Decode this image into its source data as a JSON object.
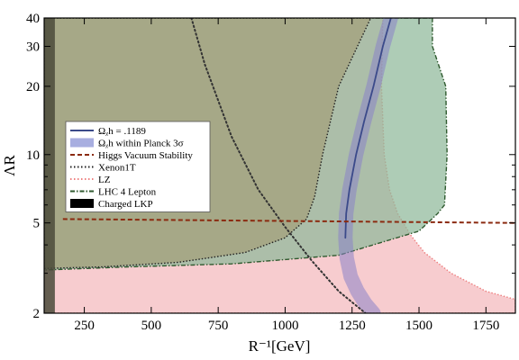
{
  "chart_data": {
    "type": "area",
    "xlabel": "R⁻¹[GeV]",
    "ylabel": "ΛR",
    "xlim": [
      100,
      1860
    ],
    "ylim": [
      2,
      40
    ],
    "yscale": "log",
    "x_ticks": [
      250,
      500,
      750,
      1000,
      1250,
      1500,
      1750
    ],
    "y_ticks": [
      2,
      5,
      10,
      20,
      30,
      40
    ],
    "legend_position": "center-left",
    "legend": [
      {
        "label": "Ωᵪh = .1189",
        "style": "solid-line",
        "color": "#3b4a8a"
      },
      {
        "label": "Ωᵪh within Planck 3σ",
        "style": "band",
        "color": "#a8aee0"
      },
      {
        "label": "Higgs Vacuum Stability",
        "style": "dashed-line",
        "color": "#8b2a10"
      },
      {
        "label": "Xenon1T",
        "style": "dotted-line",
        "color": "#222222"
      },
      {
        "label": "LZ",
        "style": "dotted-line",
        "color": "#ee8080"
      },
      {
        "label": "LHC 4 Lepton",
        "style": "dash-dot-line",
        "color": "#2f5a2f"
      },
      {
        "label": "Charged LKP",
        "style": "filled",
        "color": "#000000"
      }
    ],
    "series": [
      {
        "name": "LZ",
        "kind": "excluded-region",
        "fill": "#f4b8bc",
        "edge": "#ee8080",
        "boundary": [
          [
            100,
            40
          ],
          [
            100,
            2
          ],
          [
            1860,
            2
          ],
          [
            1860,
            2.3
          ],
          [
            1750,
            2.5
          ],
          [
            1620,
            3.0
          ],
          [
            1520,
            3.7
          ],
          [
            1470,
            4.4
          ],
          [
            1420,
            5.5
          ],
          [
            1390,
            7
          ],
          [
            1370,
            10
          ],
          [
            1360,
            20
          ],
          [
            1365,
            40
          ]
        ]
      },
      {
        "name": "LHC 4 Lepton",
        "kind": "excluded-region",
        "fill": "#8fb89a",
        "edge": "#2f5a2f",
        "boundary": [
          [
            560,
            40
          ],
          [
            1550,
            40
          ],
          [
            1550,
            30
          ],
          [
            1600,
            20
          ],
          [
            1605,
            10
          ],
          [
            1595,
            6
          ],
          [
            1570,
            5.5
          ],
          [
            1500,
            4.6
          ],
          [
            1200,
            3.6
          ],
          [
            800,
            3.3
          ],
          [
            420,
            3.2
          ],
          [
            100,
            3.1
          ],
          [
            100,
            40
          ]
        ]
      },
      {
        "name": "Xenon1T",
        "kind": "excluded-region",
        "fill": "#a4a07a",
        "edge": "#222222",
        "boundary": [
          [
            100,
            40
          ],
          [
            1320,
            40
          ],
          [
            1270,
            30
          ],
          [
            1200,
            20
          ],
          [
            1140,
            10
          ],
          [
            1110,
            6.5
          ],
          [
            1080,
            5.2
          ],
          [
            1000,
            4.3
          ],
          [
            850,
            3.7
          ],
          [
            600,
            3.35
          ],
          [
            320,
            3.2
          ],
          [
            100,
            3.15
          ]
        ]
      },
      {
        "name": "Charged LKP",
        "kind": "excluded-region",
        "fill": "#4a4a3a",
        "boundary": [
          [
            100,
            40
          ],
          [
            140,
            40
          ],
          [
            140,
            2
          ],
          [
            100,
            2
          ]
        ]
      },
      {
        "name": "Ωᵪh within Planck 3σ",
        "kind": "band",
        "color": "#8a82c8",
        "x": [
          1395,
          1365,
          1330,
          1295,
          1265,
          1240,
          1228,
          1225,
          1230,
          1245,
          1270,
          1300,
          1330
        ],
        "y": [
          40,
          30,
          20,
          14,
          10,
          7,
          5.5,
          4.3,
          3.5,
          2.9,
          2.5,
          2.2,
          2.0
        ]
      },
      {
        "name": "Ωᵪh = .1189",
        "kind": "line",
        "color": "#3b4a8a",
        "x": [
          1395,
          1365,
          1330,
          1295,
          1265,
          1240,
          1228,
          1225
        ],
        "y": [
          40,
          30,
          20,
          14,
          10,
          7,
          5.5,
          4.3
        ]
      },
      {
        "name": "Xenon1T",
        "kind": "dotted-curve",
        "color": "#333333",
        "x": [
          650,
          700,
          800,
          900,
          1000,
          1100,
          1200,
          1300
        ],
        "y": [
          40,
          25,
          12,
          7,
          4.8,
          3.4,
          2.5,
          2.0
        ]
      },
      {
        "name": "Higgs Vacuum Stability",
        "kind": "dashed-line",
        "color": "#8b2a10",
        "x": [
          170,
          1860
        ],
        "y": [
          5.2,
          5.0
        ]
      }
    ]
  }
}
